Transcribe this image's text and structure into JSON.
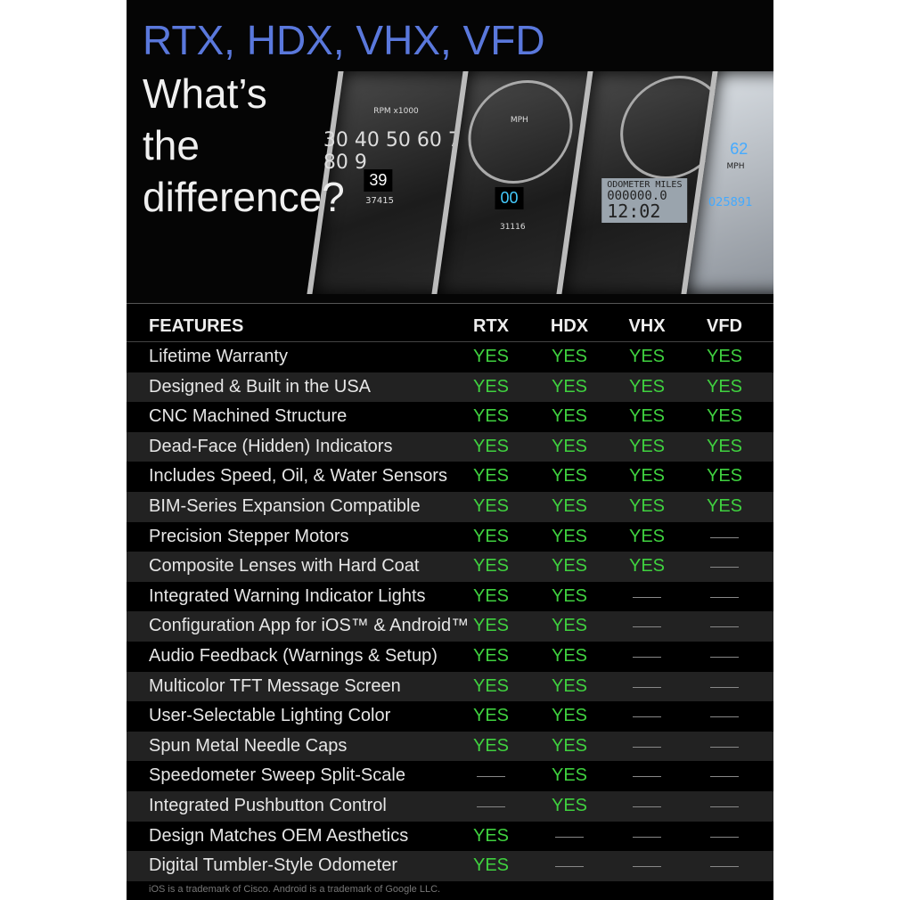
{
  "title_line1": "RTX, HDX, VHX, VFD",
  "title_line2": [
    "What’s",
    "the",
    "difference?"
  ],
  "gauges": {
    "rtx": {
      "scale": "RPM x1000",
      "numbers": "30 40 50 60 70 80 9",
      "screen": "39",
      "odo": "37415"
    },
    "hdx": {
      "unit": "MPH",
      "screen": "00",
      "odo": "31116"
    },
    "vhx": {
      "lcd_label": "ODOMETER MILES",
      "lcd_odo": "000000.0",
      "lcd_time": "12:02"
    },
    "vfd": {
      "speed": "62",
      "unit": "MPH",
      "odo": "025891"
    }
  },
  "table": {
    "headers": [
      "FEATURES",
      "RTX",
      "HDX",
      "VHX",
      "VFD"
    ],
    "rows": [
      {
        "feature": "Lifetime Warranty",
        "values": [
          "YES",
          "YES",
          "YES",
          "YES"
        ]
      },
      {
        "feature": "Designed & Built in the USA",
        "values": [
          "YES",
          "YES",
          "YES",
          "YES"
        ]
      },
      {
        "feature": "CNC Machined Structure",
        "values": [
          "YES",
          "YES",
          "YES",
          "YES"
        ]
      },
      {
        "feature": "Dead-Face (Hidden) Indicators",
        "values": [
          "YES",
          "YES",
          "YES",
          "YES"
        ]
      },
      {
        "feature": "Includes Speed, Oil, & Water Sensors",
        "values": [
          "YES",
          "YES",
          "YES",
          "YES"
        ]
      },
      {
        "feature": "BIM-Series Expansion Compatible",
        "values": [
          "YES",
          "YES",
          "YES",
          "YES"
        ]
      },
      {
        "feature": "Precision Stepper Motors",
        "values": [
          "YES",
          "YES",
          "YES",
          "—"
        ]
      },
      {
        "feature": "Composite Lenses with Hard Coat",
        "values": [
          "YES",
          "YES",
          "YES",
          "—"
        ]
      },
      {
        "feature": "Integrated Warning Indicator Lights",
        "values": [
          "YES",
          "YES",
          "—",
          "—"
        ]
      },
      {
        "feature": "Configuration App for iOS™ & Android™",
        "values": [
          "YES",
          "YES",
          "—",
          "—"
        ]
      },
      {
        "feature": "Audio Feedback (Warnings & Setup)",
        "values": [
          "YES",
          "YES",
          "—",
          "—"
        ]
      },
      {
        "feature": "Multicolor TFT Message Screen",
        "values": [
          "YES",
          "YES",
          "—",
          "—"
        ]
      },
      {
        "feature": "User-Selectable Lighting Color",
        "values": [
          "YES",
          "YES",
          "—",
          "—"
        ]
      },
      {
        "feature": "Spun Metal Needle Caps",
        "values": [
          "YES",
          "YES",
          "—",
          "—"
        ]
      },
      {
        "feature": "Speedometer Sweep Split-Scale",
        "values": [
          "—",
          "YES",
          "—",
          "—"
        ]
      },
      {
        "feature": "Integrated Pushbutton Control",
        "values": [
          "—",
          "YES",
          "—",
          "—"
        ]
      },
      {
        "feature": "Design Matches OEM Aesthetics",
        "values": [
          "YES",
          "—",
          "—",
          "—"
        ]
      },
      {
        "feature": "Digital Tumbler-Style Odometer",
        "values": [
          "YES",
          "—",
          "—",
          "—"
        ]
      }
    ]
  },
  "footnote": "iOS is a trademark of Cisco. Android is a trademark of Google LLC.",
  "colors": {
    "yes": "#3fd13f",
    "title_blue": "#5a78dc",
    "alt_row": "#222222"
  }
}
